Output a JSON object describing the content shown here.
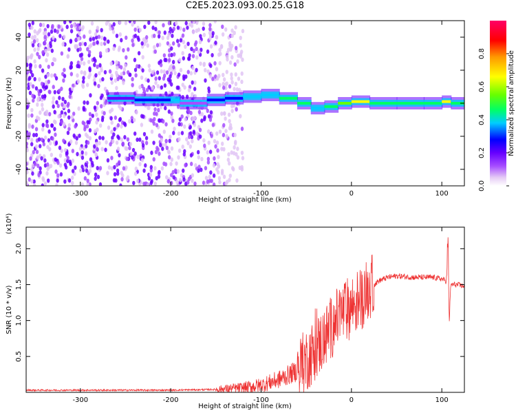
{
  "title": "C2E5.2023.093.00.25.G18",
  "chart_data": [
    {
      "type": "heatmap",
      "title": "C2E5.2023.093.00.25.G18",
      "xlabel": "Height of straight line (km)",
      "ylabel": "Frequency (Hz)",
      "xlim": [
        -360,
        125
      ],
      "ylim": [
        -50,
        50
      ],
      "x_ticks": [
        -300,
        -200,
        -100,
        0,
        100
      ],
      "x_tick_labels": [
        "-300",
        "-200",
        "-100",
        "0",
        "100"
      ],
      "y_ticks": [
        -40,
        -20,
        0,
        20,
        40
      ],
      "y_tick_labels": [
        "-40",
        "-20",
        "0",
        "20",
        "40"
      ],
      "colorbar": {
        "label": "Normalized spectral amplitude",
        "range": [
          0,
          1
        ],
        "ticks": [
          0.0,
          0.2,
          0.4,
          0.6,
          0.8
        ],
        "tick_labels": [
          "0.0",
          "0.2",
          "0.4",
          "0.6",
          "0.8"
        ],
        "colors": [
          "#ffffff",
          "#e6ccf5",
          "#a64dff",
          "#6600ff",
          "#0000ff",
          "#00ccff",
          "#00ff66",
          "#66ff00",
          "#ffff00",
          "#ff9900",
          "#ff0000",
          "#ff0066"
        ]
      },
      "noise_region": {
        "x_range": [
          -360,
          -150
        ],
        "y_range": [
          -50,
          50
        ],
        "amplitude": 0.15
      },
      "signal_ridge": {
        "x": [
          -270,
          -240,
          -200,
          -190,
          -160,
          -140,
          -120,
          -100,
          -80,
          -60,
          -45,
          -30,
          -15,
          0,
          20,
          50,
          80,
          100,
          110,
          125
        ],
        "frequency": [
          3,
          2,
          2,
          0,
          2,
          3,
          4,
          5,
          3,
          0,
          -3,
          -2,
          0,
          1,
          0,
          0,
          0,
          1,
          0,
          0
        ],
        "amplitude": [
          0.25,
          0.4,
          0.45,
          0.15,
          0.35,
          0.4,
          0.45,
          0.45,
          0.5,
          0.5,
          0.45,
          0.5,
          0.65,
          0.7,
          0.55,
          0.55,
          0.55,
          0.7,
          0.55,
          0.5
        ]
      }
    },
    {
      "type": "line",
      "xlabel": "Height of straight line (km)",
      "ylabel": "SNR (10 * v/v)",
      "multiplier_label": "(x10⁴)",
      "xlim": [
        -360,
        125
      ],
      "ylim": [
        0,
        2.3
      ],
      "x_ticks": [
        -300,
        -200,
        -100,
        0,
        100
      ],
      "x_tick_labels": [
        "-300",
        "-200",
        "-100",
        "0",
        "100"
      ],
      "y_ticks": [
        0.5,
        1.0,
        1.5,
        2.0
      ],
      "y_tick_labels": [
        "0.5",
        "1.0",
        "1.5",
        "2.0"
      ],
      "line_color": "#ee3333",
      "series": [
        {
          "x": [
            -360,
            -300,
            -250,
            -200,
            -150,
            -120,
            -100,
            -80,
            -60,
            -50,
            -40,
            -30,
            -20,
            -10,
            0,
            10,
            20,
            30,
            40,
            50,
            60,
            70,
            80,
            90,
            100,
            105,
            107,
            108,
            110,
            115,
            125
          ],
          "y": [
            0.03,
            0.03,
            0.03,
            0.03,
            0.04,
            0.06,
            0.1,
            0.18,
            0.3,
            0.45,
            0.6,
            0.75,
            0.95,
            1.1,
            1.2,
            1.3,
            1.45,
            1.55,
            1.6,
            1.62,
            1.61,
            1.6,
            1.6,
            1.6,
            1.58,
            1.55,
            2.0,
            0.95,
            1.5,
            1.5,
            1.48
          ]
        }
      ]
    }
  ]
}
